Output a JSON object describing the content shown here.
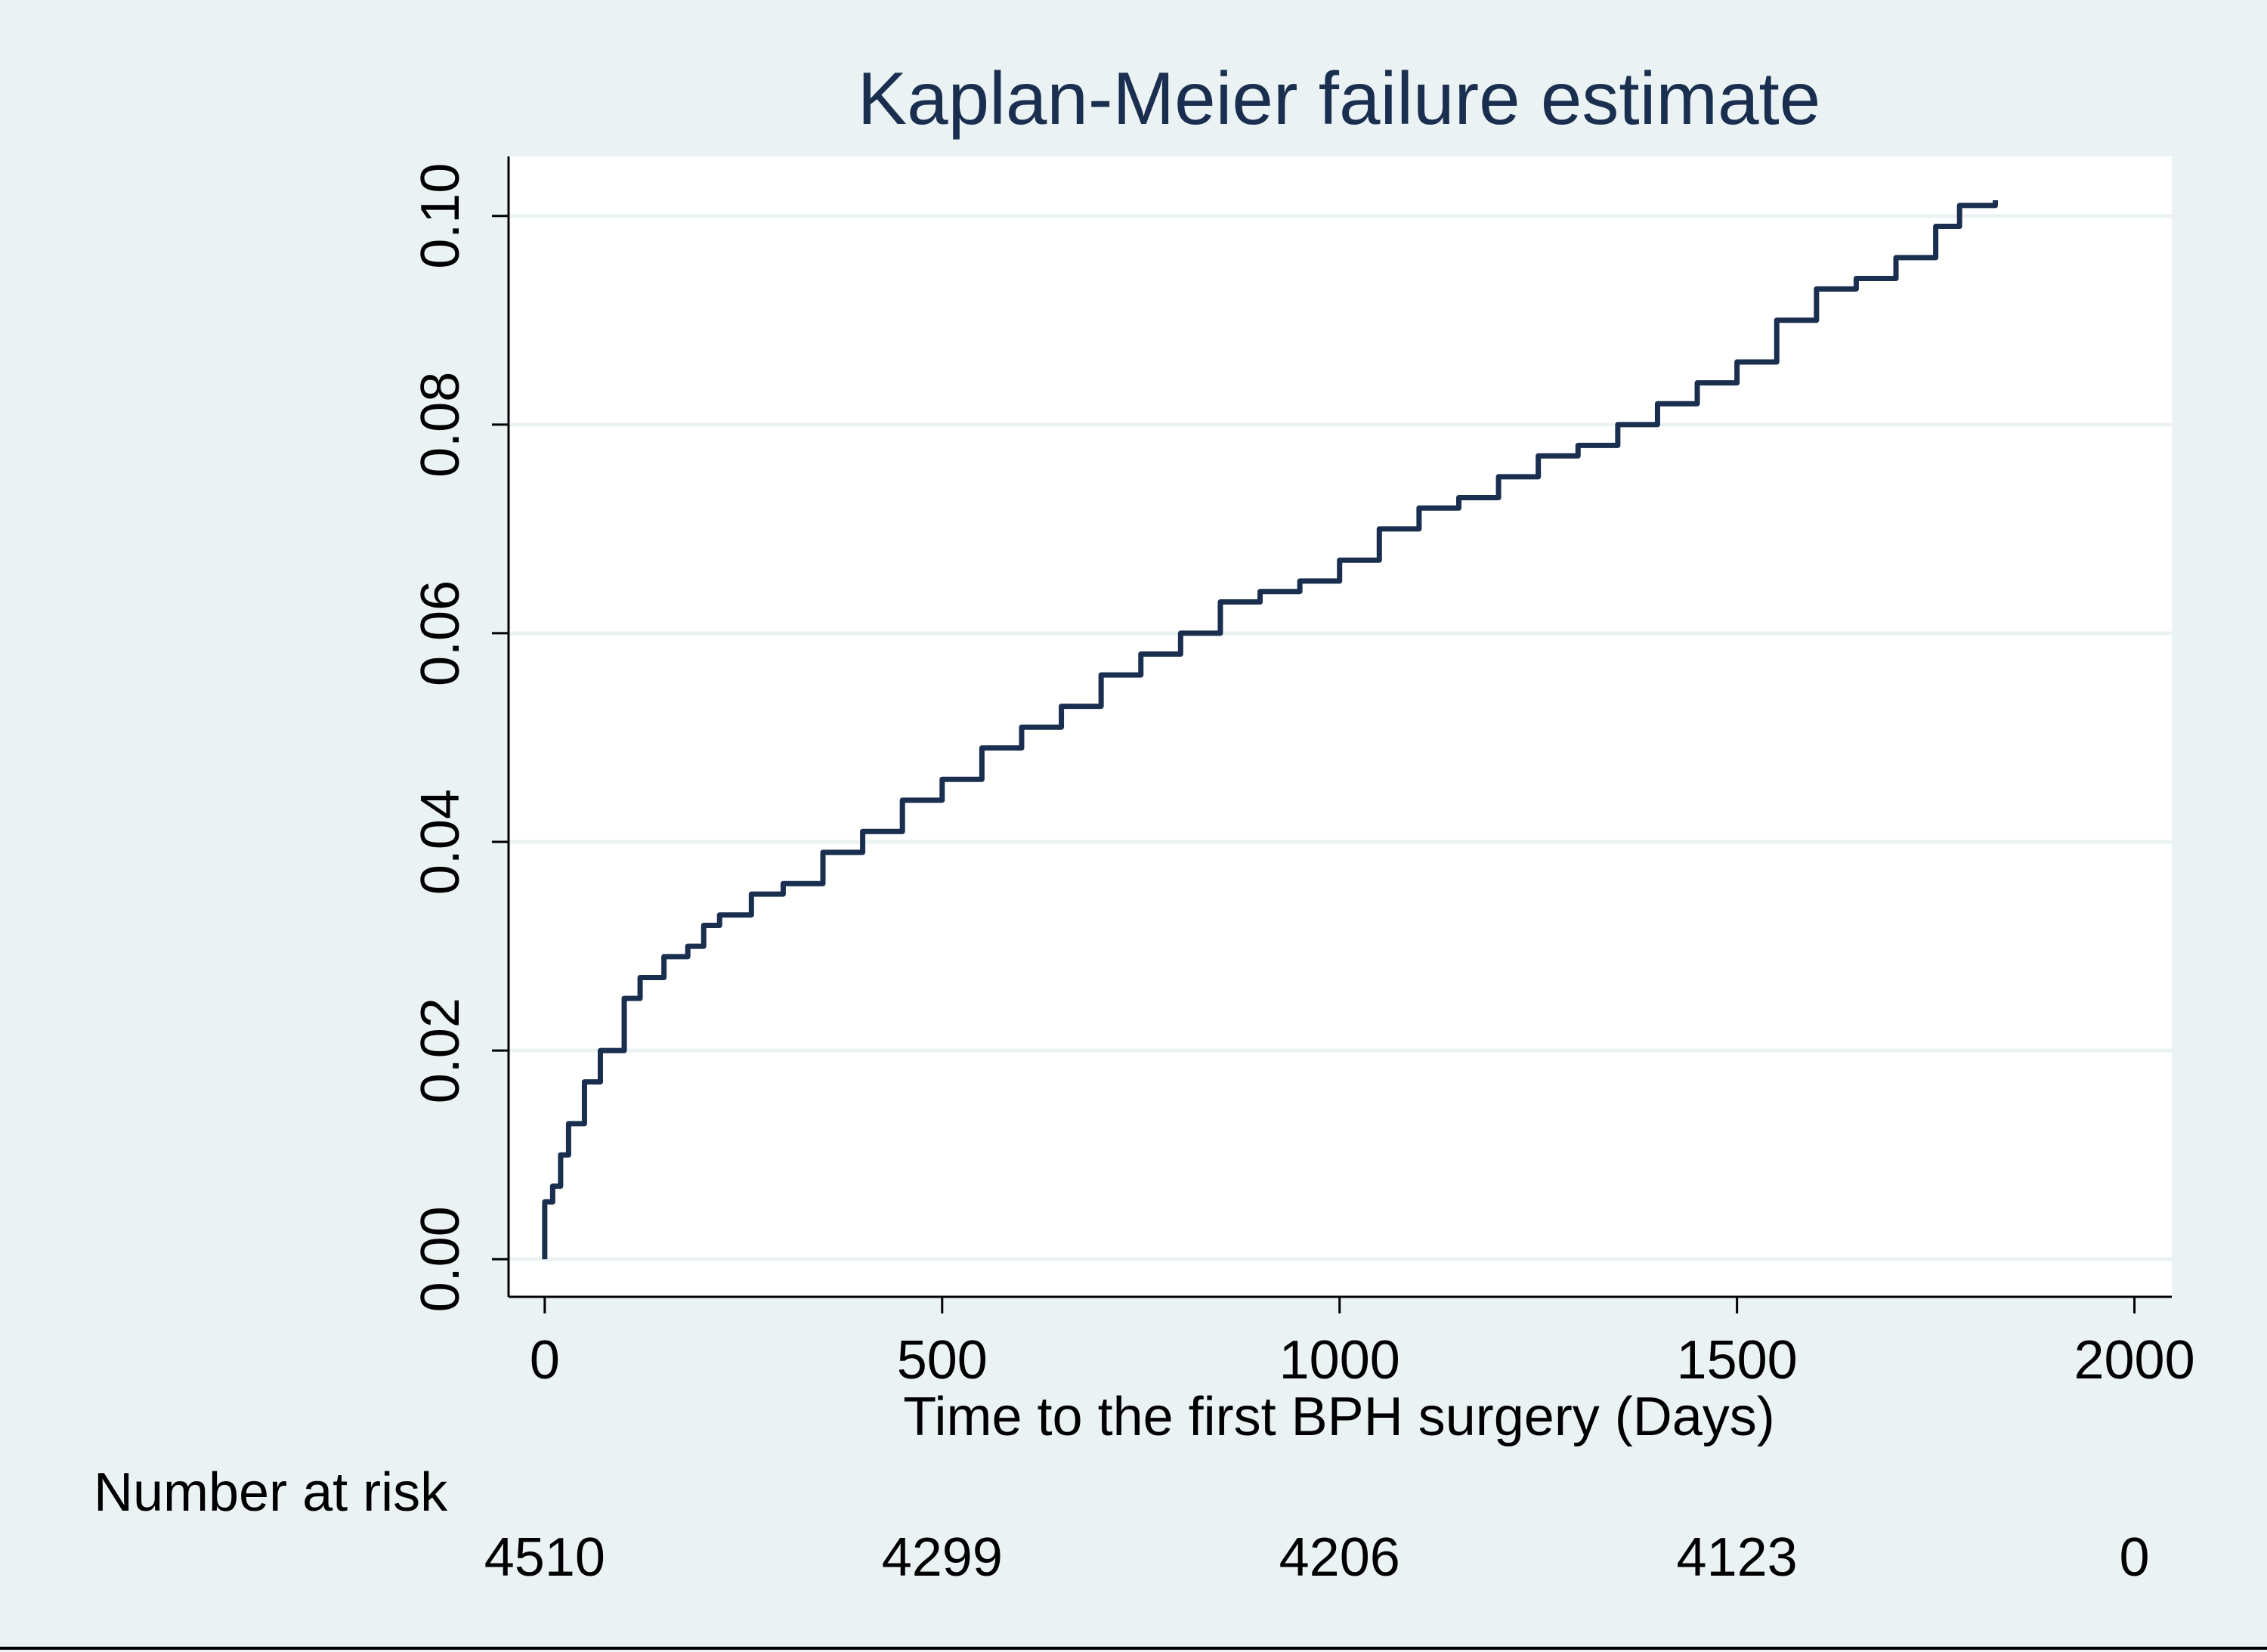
{
  "chart_data": {
    "type": "line",
    "title": "Kaplan-Meier failure estimate",
    "xlabel": "Time to the first BPH surgery (Days)",
    "x": [
      0,
      0,
      10,
      20,
      30,
      50,
      70,
      100,
      120,
      150,
      180,
      200,
      220,
      260,
      300,
      350,
      400,
      450,
      500,
      550,
      600,
      650,
      700,
      750,
      800,
      850,
      900,
      950,
      1000,
      1050,
      1100,
      1150,
      1200,
      1250,
      1300,
      1350,
      1400,
      1450,
      1500,
      1550,
      1600,
      1650,
      1700,
      1750,
      1780,
      1825
    ],
    "series": [
      {
        "color": "#1a2e4f",
        "values": [
          0,
          0.0055,
          0.007,
          0.01,
          0.013,
          0.017,
          0.02,
          0.025,
          0.027,
          0.029,
          0.03,
          0.032,
          0.033,
          0.035,
          0.036,
          0.039,
          0.041,
          0.044,
          0.046,
          0.049,
          0.051,
          0.053,
          0.056,
          0.058,
          0.06,
          0.063,
          0.064,
          0.065,
          0.067,
          0.07,
          0.072,
          0.073,
          0.075,
          0.077,
          0.078,
          0.08,
          0.082,
          0.084,
          0.086,
          0.09,
          0.093,
          0.094,
          0.096,
          0.099,
          0.101,
          0.1015
        ]
      }
    ],
    "xlim": [
      -45.5,
      2047
    ],
    "ylim": [
      -0.0036,
      0.1057
    ],
    "xticks": [
      0,
      500,
      1000,
      1500,
      2000
    ],
    "yticks": [
      {
        "value": 0,
        "label": "0.00"
      },
      0.02,
      0.04,
      0.06,
      0.08,
      {
        "value": 0.1,
        "label": "0.10"
      }
    ],
    "grid": true,
    "number_at_risk": {
      "label": "Number at risk",
      "values": [
        4510,
        4299,
        4206,
        4123,
        0
      ]
    }
  }
}
